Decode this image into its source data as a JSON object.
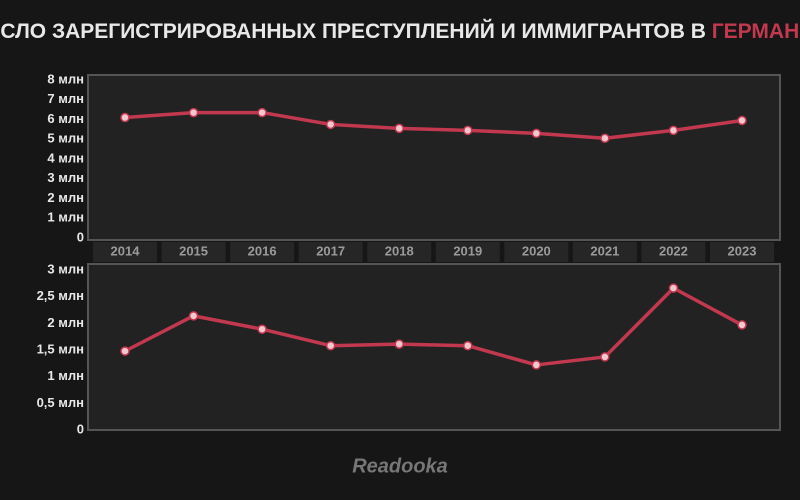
{
  "title": "ЧИСЛО ЗАРЕГИСТРИРОВАННЫХ ПРЕСТУПЛЕНИЙ И ИММИГРАНТОВ В",
  "title_highlight": "ГЕРМАНИИ",
  "logo": "Readooka",
  "chart_data": [
    {
      "type": "line",
      "color": "#c2384f",
      "grid": false,
      "categories": [
        "2014",
        "2015",
        "2016",
        "2017",
        "2018",
        "2019",
        "2020",
        "2021",
        "2022",
        "2023"
      ],
      "values": [
        6.1,
        6.35,
        6.35,
        5.75,
        5.55,
        5.45,
        5.3,
        5.05,
        5.45,
        5.95
      ],
      "ylim": [
        0,
        8
      ],
      "yticks": [
        0,
        {
          "value": 1,
          "label": "1 млн"
        },
        {
          "value": 2,
          "label": "2 млн"
        },
        {
          "value": 3,
          "label": "3 млн"
        },
        {
          "value": 4,
          "label": "4 млн"
        },
        {
          "value": 5,
          "label": "5 млн"
        },
        {
          "value": 6,
          "label": "6 млн"
        },
        {
          "value": 7,
          "label": "7 млн"
        },
        {
          "value": 8,
          "label": "8 млн"
        }
      ]
    },
    {
      "type": "line",
      "color": "#c2384f",
      "grid": false,
      "values": [
        1.48,
        2.14,
        1.89,
        1.58,
        1.61,
        1.58,
        1.22,
        1.37,
        2.66,
        1.97
      ],
      "ylim": [
        0,
        3
      ],
      "yticks": [
        0,
        {
          "value": 0.5,
          "label": "0,5 млн"
        },
        {
          "value": 1,
          "label": "1 млн"
        },
        {
          "value": 1.5,
          "label": "1,5 млн"
        },
        {
          "value": 2,
          "label": "2 млн"
        },
        {
          "value": 2.5,
          "label": "2,5 млн"
        },
        {
          "value": 3,
          "label": "3 млн"
        }
      ]
    }
  ]
}
